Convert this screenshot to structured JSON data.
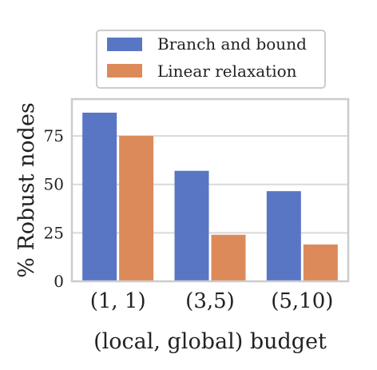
{
  "chart_data": {
    "type": "bar",
    "categories": [
      "(1, 1)",
      "(3,5)",
      "(5,10)"
    ],
    "series": [
      {
        "name": "Branch and bound",
        "values": [
          87,
          57,
          46.5
        ],
        "color": "#5876c4"
      },
      {
        "name": "Linear relaxation",
        "values": [
          75,
          24,
          19
        ],
        "color": "#dc8a5a"
      }
    ],
    "xlabel": "(local, global) budget",
    "ylabel": "% Robust nodes",
    "ylim": [
      0,
      94
    ],
    "yticks": [
      0,
      25,
      50,
      75
    ],
    "grid": true,
    "legend_position": "top"
  }
}
